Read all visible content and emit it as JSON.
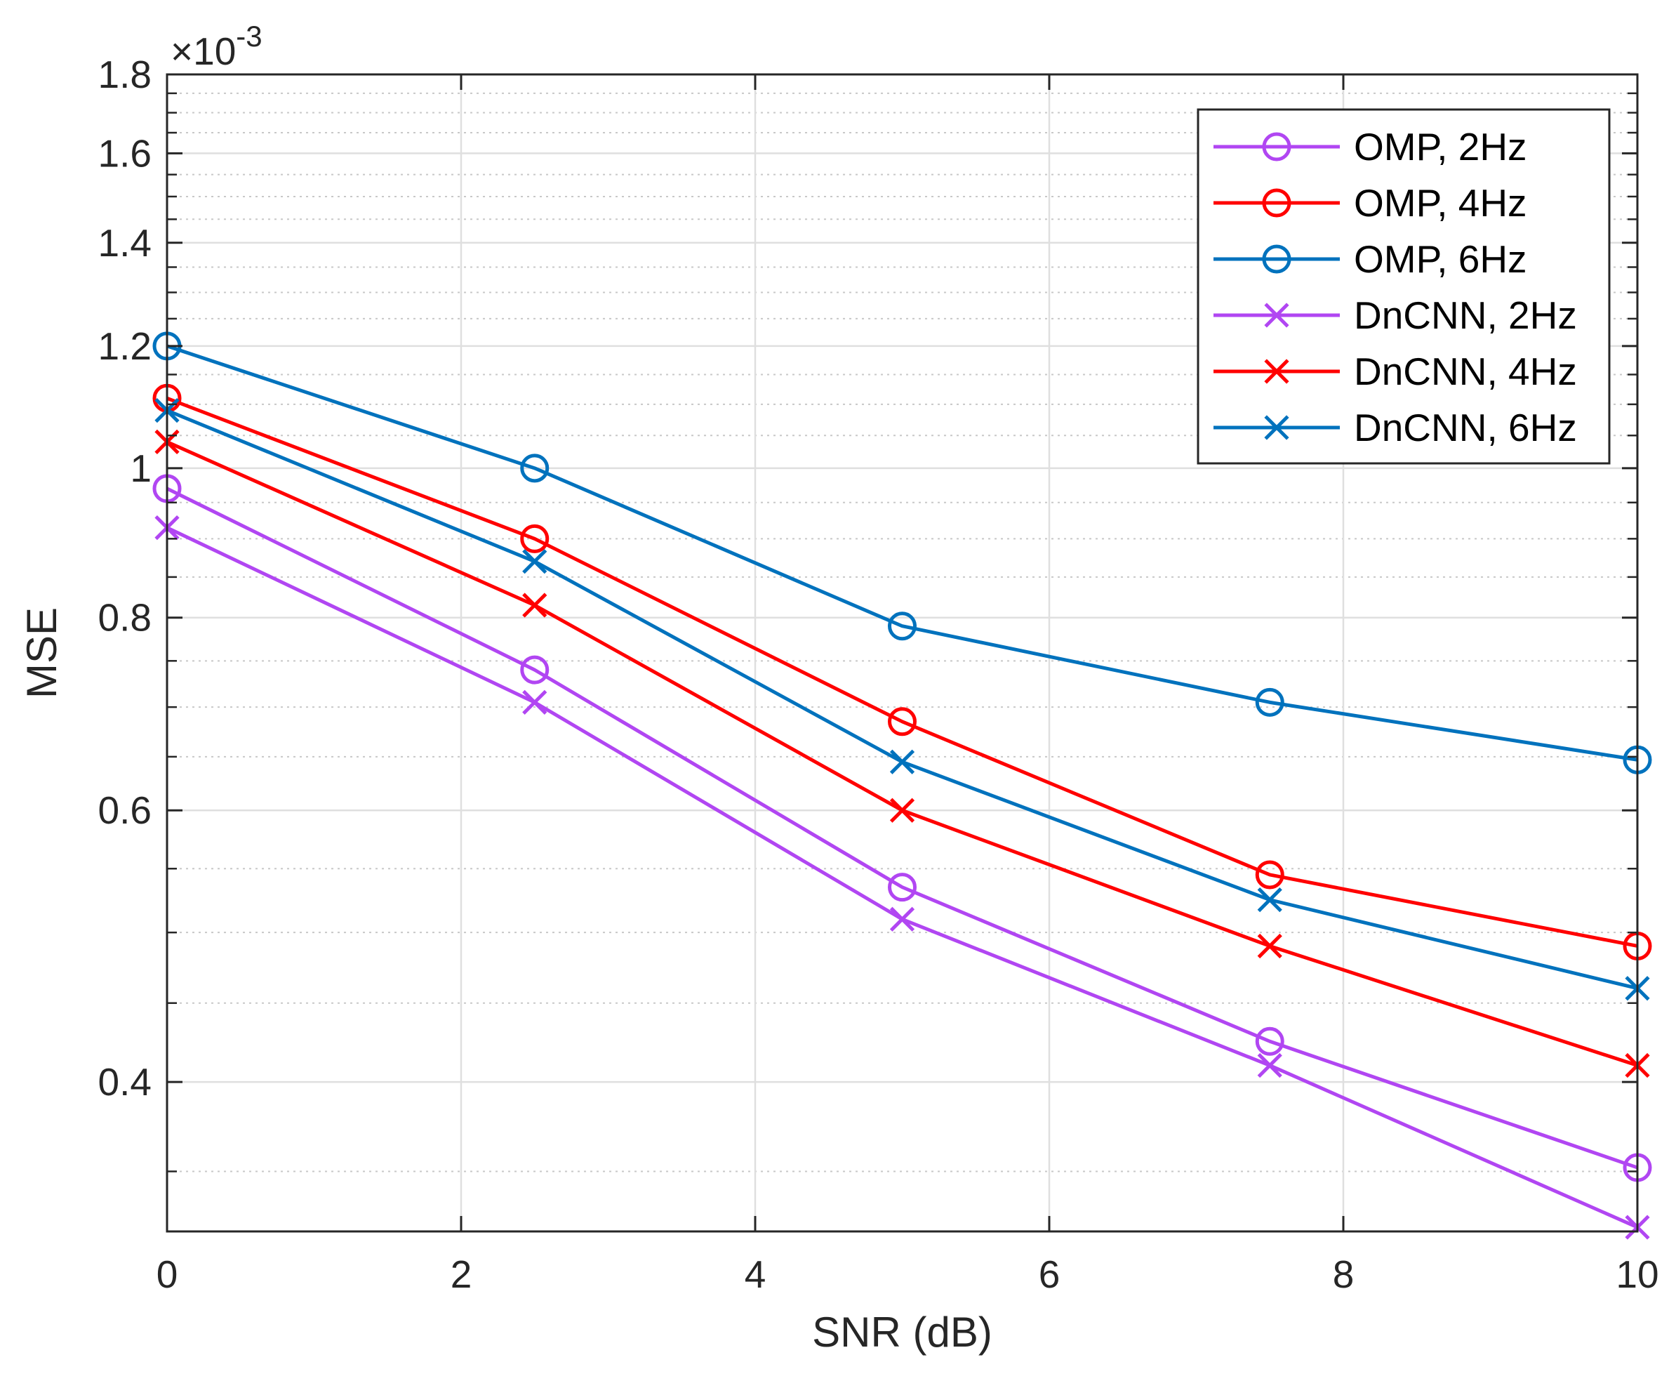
{
  "chart_data": {
    "type": "line",
    "title": "",
    "xlabel": "SNR (dB)",
    "ylabel": "MSE",
    "y_scale": "log",
    "y_multiplier_label": "×10",
    "y_multiplier_exponent": "-3",
    "xlim": [
      0,
      10
    ],
    "ylim": [
      0.32,
      1.8
    ],
    "x_ticks": [
      0,
      2,
      4,
      6,
      8,
      10
    ],
    "x_tick_labels": [
      "0",
      "2",
      "4",
      "6",
      "8",
      "10"
    ],
    "y_ticks": [
      0.4,
      0.6,
      0.8,
      1.0,
      1.2,
      1.4,
      1.6,
      1.8
    ],
    "y_tick_labels": [
      "0.4",
      "0.6",
      "0.8",
      "1",
      "1.2",
      "1.4",
      "1.6",
      "1.8"
    ],
    "y_minor_ticks": [
      0.35,
      0.45,
      0.5,
      0.55,
      0.65,
      0.7,
      0.75,
      0.85,
      0.9,
      0.95,
      1.05,
      1.1,
      1.15,
      1.25,
      1.3,
      1.35,
      1.45,
      1.5,
      1.55,
      1.65,
      1.7,
      1.75
    ],
    "grid": true,
    "legend_position": "top-right",
    "x": [
      0,
      2.5,
      5,
      7.5,
      10
    ],
    "series": [
      {
        "name": "OMP, 2Hz",
        "color": "#B146F2",
        "marker": "circle",
        "values": [
          0.97,
          0.74,
          0.535,
          0.425,
          0.352
        ]
      },
      {
        "name": "OMP, 4Hz",
        "color": "#FF0000",
        "marker": "circle",
        "values": [
          1.11,
          0.9,
          0.685,
          0.545,
          0.49
        ]
      },
      {
        "name": "OMP, 6Hz",
        "color": "#0072BD",
        "marker": "circle",
        "values": [
          1.2,
          1.0,
          0.79,
          0.705,
          0.647
        ]
      },
      {
        "name": "DnCNN, 2Hz",
        "color": "#B146F2",
        "marker": "x",
        "values": [
          0.915,
          0.705,
          0.51,
          0.41,
          0.322
        ]
      },
      {
        "name": "DnCNN, 4Hz",
        "color": "#FF0000",
        "marker": "x",
        "values": [
          1.04,
          0.815,
          0.6,
          0.49,
          0.41
        ]
      },
      {
        "name": "DnCNN, 6Hz",
        "color": "#0072BD",
        "marker": "x",
        "values": [
          1.09,
          0.87,
          0.645,
          0.525,
          0.46
        ]
      }
    ]
  }
}
